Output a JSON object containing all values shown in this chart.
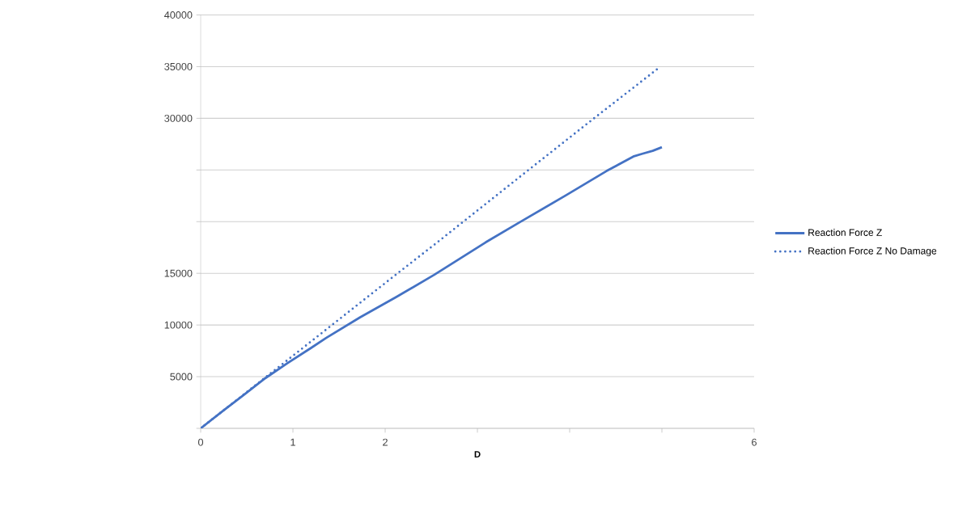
{
  "chart_data": {
    "type": "line",
    "xlabel": "D",
    "series": [
      {
        "name": "Reaction Force Z",
        "color": "#4472c4",
        "line_style": "solid",
        "x": [
          0,
          0.25,
          0.47,
          0.7,
          0.94,
          1.2,
          1.36,
          1.73,
          2.12,
          2.53,
          3.09,
          3.46,
          3.96,
          4.4,
          4.69,
          4.78,
          4.9,
          5.0
        ],
        "values": [
          0,
          1750,
          3250,
          4850,
          6300,
          7800,
          8750,
          10750,
          12700,
          14850,
          18000,
          19950,
          22550,
          24900,
          26300,
          26550,
          26850,
          27200
        ]
      },
      {
        "name": "Reaction Force Z No Damage",
        "color": "#4472c4",
        "line_style": "dotted",
        "x": [
          0,
          0.94,
          2.12,
          2.53,
          3.54,
          4.25,
          4.97
        ],
        "values": [
          0,
          6600,
          14900,
          17750,
          24900,
          29900,
          34900
        ]
      }
    ],
    "xlim": [
      0,
      6
    ],
    "ylim": [
      0,
      40000
    ],
    "xticks": [
      0,
      1,
      2,
      {
        "value": 3,
        "label": null
      },
      {
        "value": 4,
        "label": null
      },
      {
        "value": 5,
        "label": null
      },
      6
    ],
    "yticks": [
      {
        "value": 0,
        "label": null
      },
      5000,
      10000,
      15000,
      {
        "value": 20000,
        "label": null
      },
      {
        "value": 25000,
        "label": null
      },
      30000,
      35000,
      40000
    ],
    "grid": "y",
    "legend": "right"
  }
}
